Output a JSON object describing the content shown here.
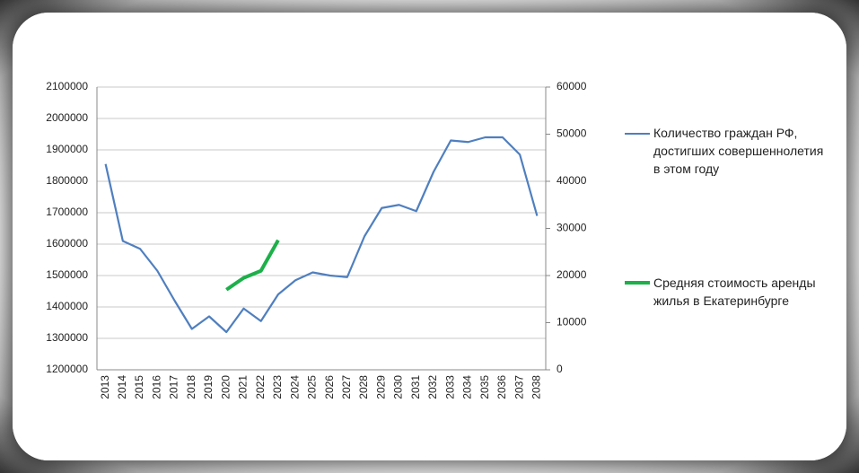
{
  "chart_data": {
    "type": "line",
    "categories": [
      "2013",
      "2014",
      "2015",
      "2016",
      "2017",
      "2018",
      "2019",
      "2020",
      "2021",
      "2022",
      "2023",
      "2024",
      "2025",
      "2026",
      "2027",
      "2028",
      "2029",
      "2030",
      "2031",
      "2032",
      "2033",
      "2034",
      "2035",
      "2036",
      "2037",
      "2038"
    ],
    "series": [
      {
        "name": "Количество граждан РФ, достигших совершеннолетия в этом году",
        "color": "#4f7fbf",
        "values": [
          1855000,
          1610000,
          1585000,
          1515000,
          1420000,
          1330000,
          1370000,
          1320000,
          1395000,
          1355000,
          1440000,
          1485000,
          1510000,
          1500000,
          1495000,
          1625000,
          1715000,
          1725000,
          1705000,
          1830000,
          1930000,
          1925000,
          1940000,
          1940000,
          1885000,
          1690000
        ]
      },
      {
        "name": "Средняя стоимость аренды жилья в Екатеринбурге",
        "color": "#1db04a",
        "axis": "y2",
        "values": [
          null,
          null,
          null,
          null,
          null,
          null,
          null,
          17000,
          19500,
          21000,
          27500,
          null,
          null,
          null,
          null,
          null,
          null,
          null,
          null,
          null,
          null,
          null,
          null,
          null,
          null,
          null
        ]
      }
    ],
    "ylim": [
      1200000,
      2100000
    ],
    "yticks": [
      1200000,
      1300000,
      1400000,
      1500000,
      1600000,
      1700000,
      1800000,
      1900000,
      2000000,
      2100000
    ],
    "y2lim": [
      0,
      60000
    ],
    "y2ticks": [
      0,
      10000,
      20000,
      30000,
      40000,
      50000,
      60000
    ],
    "grid": true,
    "legend": "right"
  }
}
